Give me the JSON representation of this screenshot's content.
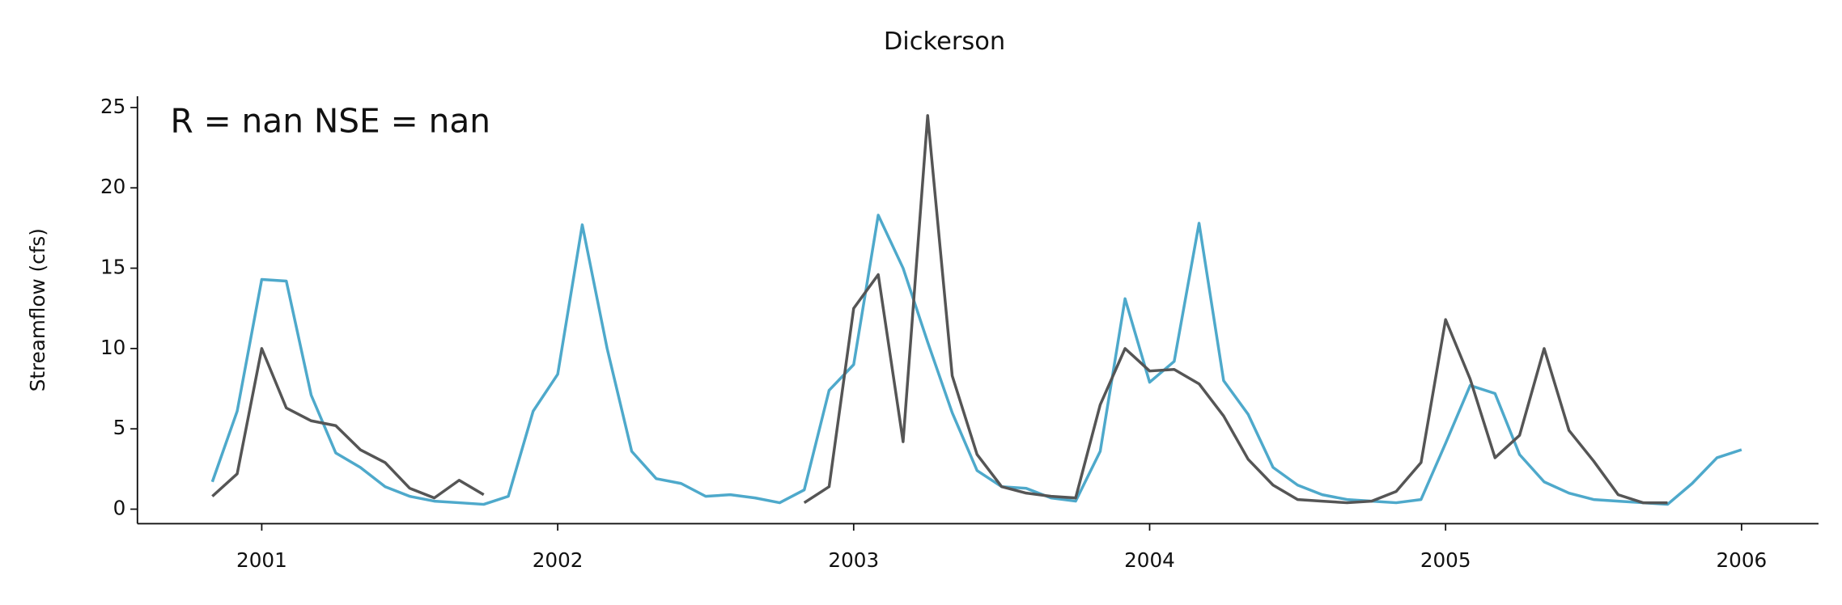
{
  "chart_data": {
    "type": "line",
    "title": "Dickerson",
    "ylabel": "Streamflow (cfs)",
    "annotation": "R = nan  NSE = nan",
    "x": [
      2000.833,
      2000.917,
      2001.0,
      2001.083,
      2001.167,
      2001.25,
      2001.333,
      2001.417,
      2001.5,
      2001.583,
      2001.667,
      2001.75,
      2001.833,
      2001.917,
      2002.0,
      2002.083,
      2002.167,
      2002.25,
      2002.333,
      2002.417,
      2002.5,
      2002.583,
      2002.667,
      2002.75,
      2002.833,
      2002.917,
      2003.0,
      2003.083,
      2003.167,
      2003.25,
      2003.333,
      2003.417,
      2003.5,
      2003.583,
      2003.667,
      2003.75,
      2003.833,
      2003.917,
      2004.0,
      2004.083,
      2004.167,
      2004.25,
      2004.333,
      2004.417,
      2004.5,
      2004.583,
      2004.667,
      2004.75,
      2004.833,
      2004.917,
      2005.0,
      2005.083,
      2005.167,
      2005.25,
      2005.333,
      2005.417,
      2005.5,
      2005.583,
      2005.667,
      2005.75,
      2005.833,
      2005.917,
      2006.0
    ],
    "series": [
      {
        "color": "#4ea9cb",
        "values": [
          1.7,
          6.1,
          14.3,
          14.2,
          7.1,
          3.5,
          2.6,
          1.4,
          0.8,
          0.5,
          0.4,
          0.3,
          0.8,
          6.1,
          8.4,
          17.7,
          10.0,
          3.6,
          1.9,
          1.6,
          0.8,
          0.9,
          0.7,
          0.4,
          1.2,
          7.4,
          9.0,
          18.3,
          15.0,
          10.4,
          6.0,
          2.4,
          1.4,
          1.3,
          0.7,
          0.5,
          3.6,
          13.1,
          7.9,
          9.2,
          17.8,
          8.0,
          5.9,
          2.6,
          1.5,
          0.9,
          0.6,
          0.5,
          0.4,
          0.6,
          4.1,
          7.7,
          7.2,
          3.4,
          1.7,
          1.0,
          0.6,
          0.5,
          0.4,
          0.3,
          1.6,
          3.2,
          3.7
        ]
      },
      {
        "color": "#555555",
        "values": [
          0.8,
          2.2,
          10.0,
          6.3,
          5.5,
          5.2,
          3.7,
          2.9,
          1.3,
          0.7,
          1.8,
          0.9,
          null,
          null,
          null,
          null,
          null,
          null,
          null,
          null,
          null,
          null,
          null,
          null,
          0.4,
          1.4,
          12.5,
          14.6,
          4.2,
          24.5,
          8.3,
          3.4,
          1.4,
          1.0,
          0.8,
          0.7,
          6.5,
          10.0,
          8.6,
          8.7,
          7.8,
          5.8,
          3.1,
          1.5,
          0.6,
          0.5,
          0.4,
          0.5,
          1.1,
          2.9,
          11.8,
          8.1,
          3.2,
          4.6,
          10.0,
          4.9,
          3.0,
          0.9,
          0.4,
          0.4,
          null,
          null,
          null
        ]
      }
    ],
    "xlim": [
      2000.58,
      2006.26
    ],
    "xticks": [
      2001,
      2002,
      2003,
      2004,
      2005,
      2006
    ],
    "ylim": [
      -0.9,
      25.7
    ],
    "yticks": [
      0,
      5,
      10,
      15,
      20,
      25
    ]
  }
}
